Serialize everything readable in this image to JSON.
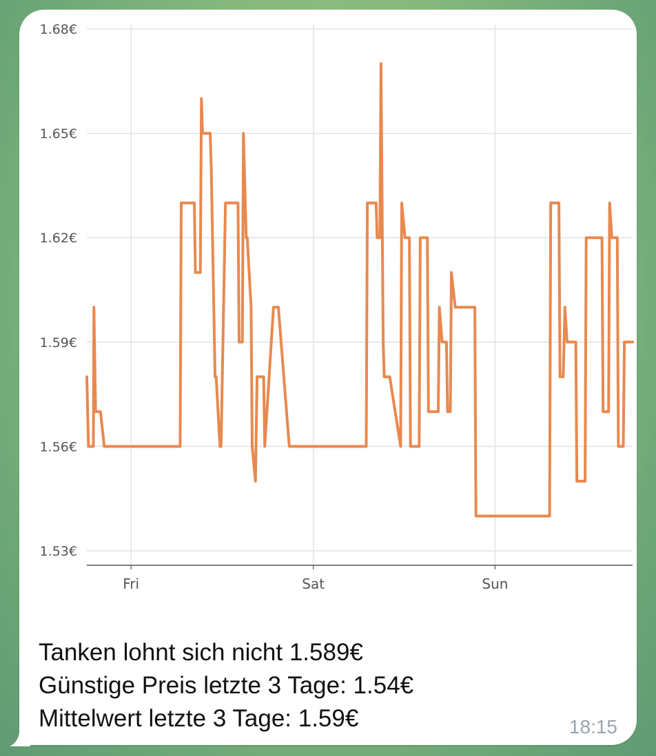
{
  "message": {
    "line1": "Tanken lohnt sich nicht 1.589€",
    "line2": "Günstige Preis letzte 3 Tage: 1.54€",
    "line3": "Mittelwert letzte 3 Tage: 1.59€",
    "time": "18:15"
  },
  "colors": {
    "line": "#e8894f",
    "grid": "#dde3ea",
    "axis": "#555555",
    "bubble": "#ffffff",
    "time": "#9aa4ad"
  },
  "chart_data": {
    "type": "line",
    "title": "",
    "xlabel": "",
    "ylabel": "",
    "ylim": [
      1.53,
      1.68
    ],
    "xlim": [
      0,
      100
    ],
    "yticks": [
      {
        "value": 1.68,
        "label": "1.68€"
      },
      {
        "value": 1.65,
        "label": "1.65€"
      },
      {
        "value": 1.62,
        "label": "1.62€"
      },
      {
        "value": 1.59,
        "label": "1.59€"
      },
      {
        "value": 1.56,
        "label": "1.56€"
      },
      {
        "value": 1.53,
        "label": "1.53€"
      }
    ],
    "xticks": [
      {
        "value": 8.1,
        "label": "Fri"
      },
      {
        "value": 41.5,
        "label": "Sat"
      },
      {
        "value": 74.8,
        "label": "Sun"
      }
    ],
    "grid": true,
    "series": [
      {
        "name": "",
        "x": [
          0,
          0.3,
          0.6,
          1.2,
          1.3,
          1.6,
          1.8,
          2.1,
          2.3,
          2.5,
          3.2,
          3.4,
          17.1,
          17.3,
          19.7,
          19.9,
          20.6,
          20.8,
          21.0,
          21.2,
          22.6,
          22.8,
          23.5,
          23.7,
          24.4,
          24.6,
          25.4,
          25.6,
          27.7,
          27.9,
          28.5,
          28.7,
          29.2,
          29.4,
          30.1,
          30.3,
          30.9,
          31.2,
          31.6,
          31.8,
          32.4,
          32.6,
          34.2,
          34.4,
          34.9,
          35.1,
          37.1,
          37.3,
          51.2,
          51.4,
          53.0,
          53.2,
          53.7,
          53.9,
          54.3,
          54.5,
          55.3,
          55.5,
          57.5,
          57.7,
          58.3,
          58.6,
          59.1,
          59.3,
          60.9,
          61.1,
          62.4,
          62.6,
          64.4,
          64.6,
          65.1,
          65.3,
          65.9,
          66.1,
          66.6,
          66.8,
          67.5,
          67.7,
          68.4,
          68.6,
          71.1,
          71.3,
          84.8,
          85.0,
          86.5,
          86.7,
          87.3,
          87.6,
          88.0,
          88.3,
          89.6,
          89.8,
          91.3,
          91.5,
          94.4,
          94.6,
          95.6,
          95.8,
          96.2,
          96.4,
          97.2,
          97.4,
          98.3,
          98.5,
          99.4,
          99.6,
          100
        ],
        "y": [
          1.58,
          1.56,
          1.56,
          1.56,
          1.6,
          1.57,
          1.57,
          1.57,
          1.57,
          1.57,
          1.56,
          1.56,
          1.56,
          1.63,
          1.63,
          1.61,
          1.61,
          1.61,
          1.66,
          1.65,
          1.65,
          1.64,
          1.58,
          1.58,
          1.56,
          1.56,
          1.63,
          1.63,
          1.63,
          1.59,
          1.59,
          1.65,
          1.62,
          1.62,
          1.6,
          1.56,
          1.55,
          1.58,
          1.58,
          1.58,
          1.58,
          1.56,
          1.6,
          1.6,
          1.6,
          1.6,
          1.56,
          1.56,
          1.56,
          1.63,
          1.63,
          1.62,
          1.62,
          1.67,
          1.59,
          1.58,
          1.58,
          1.58,
          1.56,
          1.63,
          1.62,
          1.62,
          1.62,
          1.56,
          1.56,
          1.62,
          1.62,
          1.57,
          1.57,
          1.6,
          1.59,
          1.59,
          1.59,
          1.57,
          1.57,
          1.61,
          1.6,
          1.6,
          1.6,
          1.6,
          1.6,
          1.54,
          1.54,
          1.63,
          1.63,
          1.58,
          1.58,
          1.6,
          1.59,
          1.59,
          1.59,
          1.55,
          1.55,
          1.62,
          1.62,
          1.57,
          1.57,
          1.63,
          1.62,
          1.62,
          1.62,
          1.56,
          1.56,
          1.59,
          1.59,
          1.59,
          1.59
        ]
      }
    ]
  }
}
